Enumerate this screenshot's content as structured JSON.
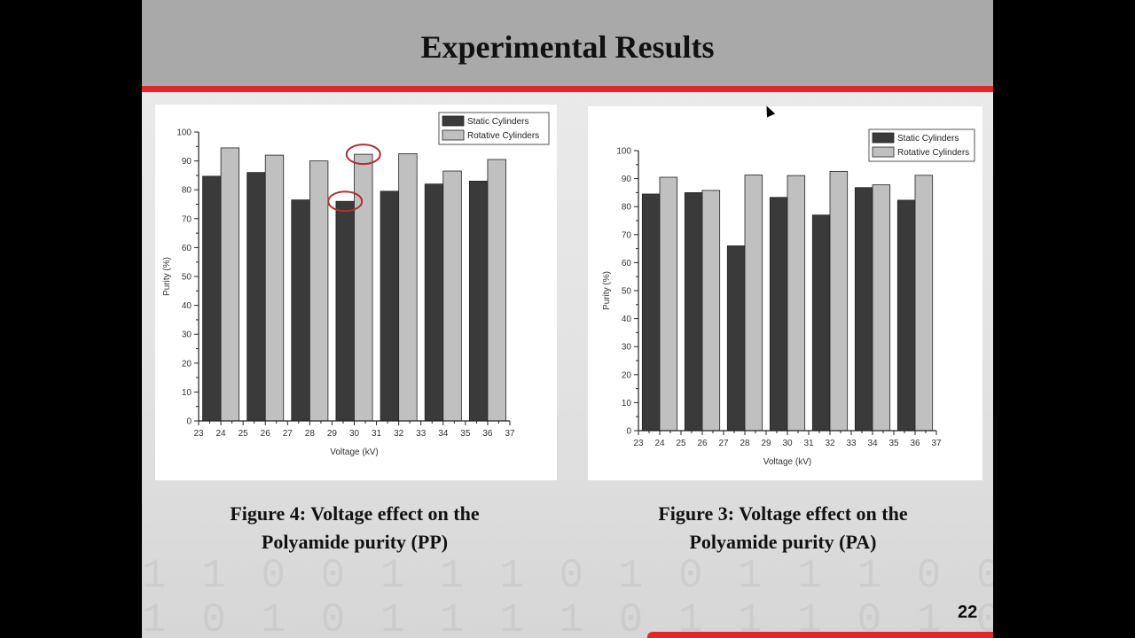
{
  "slide": {
    "title": "Experimental Results",
    "page_number": "22",
    "captions": [
      {
        "line1": "Figure 4: Voltage effect on the",
        "line2": "Polyamide purity (PP)"
      },
      {
        "line1": "Figure 3: Voltage effect on the",
        "line2": "Polyamide purity (PA)"
      }
    ],
    "colors": {
      "header": "#a9a9a9",
      "accent_red": "#e0282a",
      "static_bar": "#3a3a3a",
      "rotative_bar": "#c0c0c0",
      "highlight_circle": "#b03030"
    }
  },
  "chart_data": [
    {
      "type": "bar",
      "title": "",
      "xlabel": "Voltage (kV)",
      "ylabel": "Purity (%)",
      "xlim": [
        23,
        37
      ],
      "ylim": [
        0,
        100
      ],
      "xticks": [
        23,
        24,
        25,
        26,
        27,
        28,
        29,
        30,
        31,
        32,
        33,
        34,
        35,
        36,
        37
      ],
      "yticks": [
        0,
        10,
        20,
        30,
        40,
        50,
        60,
        70,
        80,
        90,
        100
      ],
      "grid": false,
      "legend": "top-right",
      "categories": [
        24,
        26,
        28,
        30,
        32,
        34,
        36
      ],
      "series": [
        {
          "name": "Static Cylinders",
          "color": "#3a3a3a",
          "values": [
            84.7,
            86,
            76.5,
            76,
            79.5,
            82,
            83
          ]
        },
        {
          "name": "Rotative Cylinders",
          "color": "#c0c0c0",
          "values": [
            94.5,
            92,
            90,
            92.3,
            92.5,
            86.5,
            90.5
          ]
        }
      ],
      "annotations": [
        {
          "type": "circle",
          "series": "Static Cylinders",
          "category": 30
        },
        {
          "type": "circle",
          "series": "Rotative Cylinders",
          "category": 30
        }
      ]
    },
    {
      "type": "bar",
      "title": "",
      "xlabel": "Voltage (kV)",
      "ylabel": "Purity (%)",
      "xlim": [
        23,
        37
      ],
      "ylim": [
        0,
        100
      ],
      "xticks": [
        23,
        24,
        25,
        26,
        27,
        28,
        29,
        30,
        31,
        32,
        33,
        34,
        35,
        36,
        37
      ],
      "yticks": [
        0,
        10,
        20,
        30,
        40,
        50,
        60,
        70,
        80,
        90,
        100
      ],
      "grid": false,
      "legend": "top-right",
      "categories": [
        24,
        26,
        28,
        30,
        32,
        34,
        36
      ],
      "series": [
        {
          "name": "Static Cylinders",
          "color": "#3a3a3a",
          "values": [
            84.5,
            85,
            66,
            83.3,
            77,
            86.8,
            82.3
          ]
        },
        {
          "name": "Rotative Cylinders",
          "color": "#c0c0c0",
          "values": [
            90.5,
            85.8,
            91.3,
            91.1,
            92.6,
            87.8,
            91.2
          ]
        }
      ],
      "annotations": []
    }
  ]
}
